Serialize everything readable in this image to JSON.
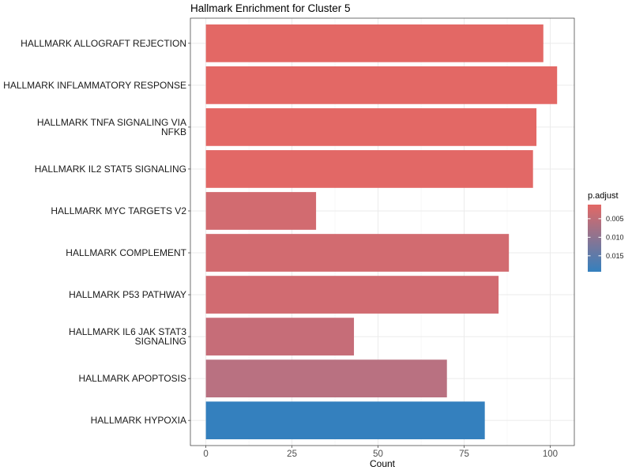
{
  "chart_data": {
    "type": "bar",
    "orientation": "horizontal",
    "title": "Hallmark Enrichment for Cluster 5",
    "xlabel": "Count",
    "ylabel": "",
    "xlim": [
      -4.5,
      107
    ],
    "x_ticks": [
      0,
      25,
      50,
      75,
      100
    ],
    "x_tick_labels": [
      "0",
      "25",
      "50",
      "75",
      "100"
    ],
    "grid": true,
    "categories": [
      [
        "HALLMARK ALLOGRAFT REJECTION"
      ],
      [
        "HALLMARK INFLAMMATORY RESPONSE"
      ],
      [
        "HALLMARK TNFA SIGNALING VIA",
        "NFKB"
      ],
      [
        "HALLMARK IL2 STAT5 SIGNALING"
      ],
      [
        "HALLMARK MYC TARGETS V2"
      ],
      [
        "HALLMARK COMPLEMENT"
      ],
      [
        "HALLMARK P53 PATHWAY"
      ],
      [
        "HALLMARK IL6 JAK STAT3",
        "SIGNALING"
      ],
      [
        "HALLMARK APOPTOSIS"
      ],
      [
        "HALLMARK HYPOXIA"
      ]
    ],
    "values": [
      98,
      102,
      96,
      95,
      32,
      88,
      85,
      43,
      70,
      81
    ],
    "bar_colors": [
      "#e36865",
      "#e36865",
      "#e36865",
      "#e26866",
      "#d26b70",
      "#d26b70",
      "#d16b71",
      "#c66d78",
      "#b97181",
      "#3480be"
    ],
    "legend": {
      "title": "p.adjust",
      "placement": "right",
      "ticks": [
        0.005,
        0.01,
        0.015
      ],
      "tick_labels": [
        "0.005",
        "0.010",
        "0.015"
      ],
      "range": [
        0.0012,
        0.0193
      ],
      "color_low": "#e36865",
      "color_high": "#3480be"
    }
  }
}
